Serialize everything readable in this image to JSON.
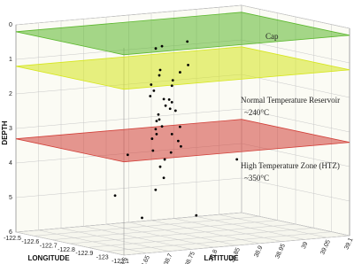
{
  "chart_data": {
    "type": "scatter3d",
    "x_label": "LONGITUDE",
    "y_label": "LATITUDE",
    "z_label": "DEPTH",
    "xlim": [
      -122.5,
      -123.1
    ],
    "xticks": [
      -122.5,
      -122.6,
      -122.7,
      -122.8,
      -122.9,
      -123,
      -123.1
    ],
    "ylim": [
      38.6,
      39.1
    ],
    "yticks": [
      38.6,
      38.65,
      38.7,
      38.75,
      38.8,
      38.85,
      38.9,
      38.95,
      39,
      39.05,
      39.1
    ],
    "zlim": [
      0,
      6
    ],
    "zticks": [
      0,
      1,
      2,
      3,
      4,
      5,
      6
    ],
    "grid": true,
    "point_color": "#000000",
    "surfaces": [
      {
        "name": "Cap",
        "depth": 0.2,
        "color": "#5cb82e"
      },
      {
        "name": "Normal Temperature Reservoir",
        "note": "~240°C",
        "depth": 1.2,
        "color": "#d6e61e"
      },
      {
        "name": "High Temperature Zone (HTZ)",
        "note": "~350°C",
        "depth": 3.3,
        "color": "#d2413a"
      }
    ],
    "x": [
      -122.8,
      -122.82,
      -122.79,
      -122.84,
      -122.81,
      -122.78,
      -122.83,
      -122.8,
      -122.77,
      -122.85,
      -122.82,
      -122.79,
      -122.81,
      -122.8,
      -122.83,
      -122.76,
      -122.84,
      -122.8,
      -122.82,
      -122.79,
      -122.81,
      -122.78,
      -122.86,
      -122.8,
      -122.83,
      -122.79,
      -122.81,
      -122.82,
      -122.77,
      -122.8,
      -122.9,
      -122.7,
      -122.95,
      -122.65,
      -122.85,
      -122.75,
      -122.8,
      -122.88,
      -122.72,
      -122.81
    ],
    "y": [
      38.8,
      38.82,
      38.79,
      38.81,
      38.83,
      38.8,
      38.78,
      38.84,
      38.81,
      38.8,
      38.79,
      38.83,
      38.82,
      38.78,
      38.8,
      38.82,
      38.83,
      38.81,
      38.77,
      38.8,
      38.84,
      38.79,
      38.82,
      38.8,
      38.81,
      38.83,
      38.78,
      38.8,
      38.82,
      38.79,
      38.75,
      38.9,
      38.7,
      38.85,
      38.95,
      38.72,
      38.88,
      38.83,
      38.76,
      38.8
    ],
    "z": [
      1.2,
      1.5,
      1.8,
      2.1,
      2.4,
      2.7,
      3.0,
      3.3,
      1.4,
      2.0,
      2.6,
      3.1,
      3.6,
      1.6,
      2.2,
      2.9,
      3.4,
      3.8,
      1.9,
      2.5,
      1.3,
      3.2,
      2.8,
      4.0,
      2.3,
      1.7,
      3.5,
      4.3,
      2.1,
      2.9,
      4.5,
      0.6,
      5.2,
      0.8,
      3.9,
      4.8,
      5.5,
      1.0,
      3.7,
      0.5
    ]
  }
}
